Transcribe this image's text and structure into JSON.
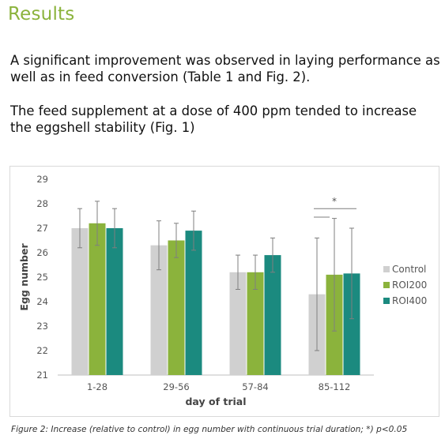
{
  "heading": "Results",
  "paragraphs": [
    "A significant improvement was observed in laying performance as well as in feed conversion (Table 1 and Fig. 2).",
    "The feed supplement at a dose of 400 ppm tended to increase the eggshell stability (Fig. 1)"
  ],
  "caption": "Figure 2: Increase (relative to control) in egg number with continuous trial duration; *) p<0.05",
  "chart_data": {
    "type": "bar",
    "title": "",
    "xlabel": "day of trial",
    "ylabel": "Egg number",
    "categories": [
      "1-28",
      "29-56",
      "57-84",
      "85-112"
    ],
    "ylim": [
      21,
      29
    ],
    "yticks": [
      21,
      22,
      23,
      24,
      25,
      26,
      27,
      28,
      29
    ],
    "grid": false,
    "legend_position": "right",
    "series": [
      {
        "name": "Control",
        "color": "#d0d0d0",
        "values": [
          27.0,
          26.3,
          25.2,
          24.3
        ],
        "error_low": [
          26.2,
          25.3,
          24.5,
          22.0
        ],
        "error_high": [
          27.8,
          27.3,
          25.9,
          26.6
        ]
      },
      {
        "name": "ROI200",
        "color": "#8bb33c",
        "values": [
          27.2,
          26.5,
          25.2,
          25.1
        ],
        "error_low": [
          26.3,
          25.8,
          24.5,
          22.8
        ],
        "error_high": [
          28.1,
          27.2,
          25.9,
          27.4
        ]
      },
      {
        "name": "ROI400",
        "color": "#1b8a7f",
        "values": [
          27.0,
          26.9,
          25.9,
          25.15
        ],
        "error_low": [
          26.2,
          26.1,
          25.2,
          23.3
        ],
        "error_high": [
          27.8,
          27.7,
          26.6,
          27.0
        ]
      }
    ],
    "annotations": [
      {
        "text": "*",
        "category": "85-112",
        "note": "significance bracket"
      }
    ]
  }
}
